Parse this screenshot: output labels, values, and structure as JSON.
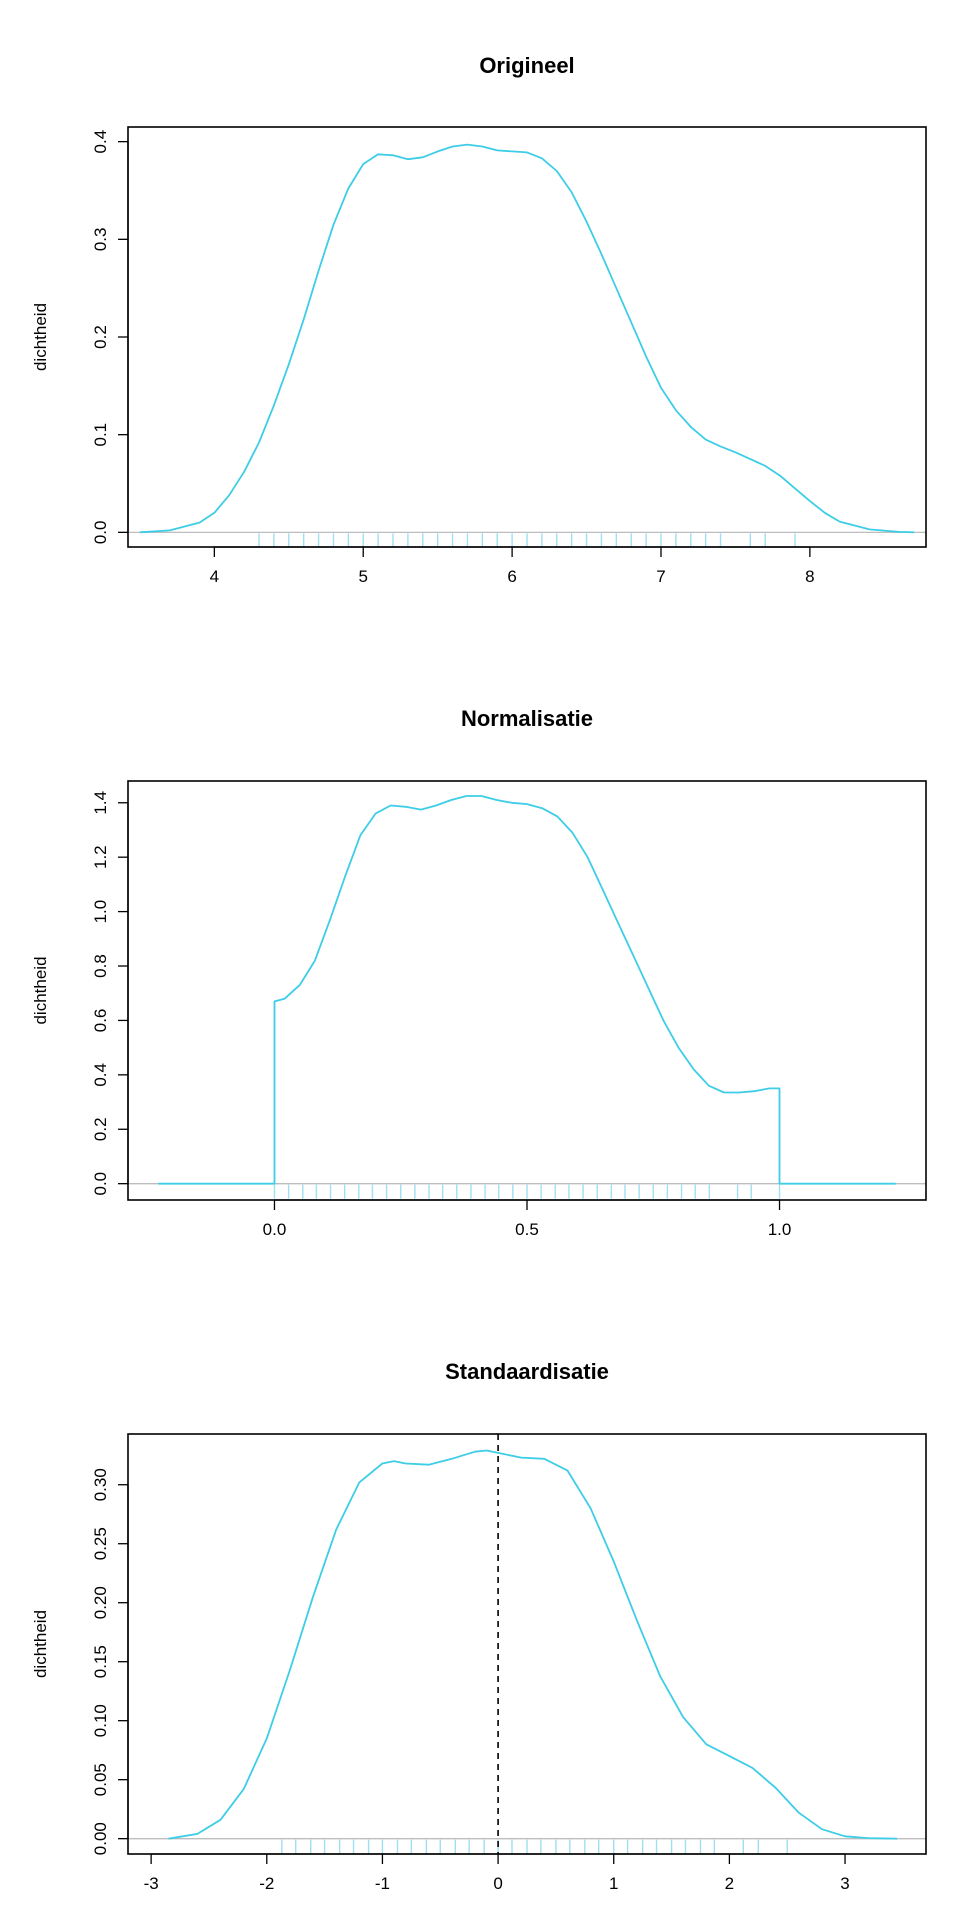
{
  "curve_color": "#3dcde6",
  "rug_color": "#9edff0",
  "chart_data": [
    {
      "type": "line",
      "title": "Origineel",
      "xlabel": "",
      "ylabel": "dichtheid",
      "xlim": [
        3.42,
        8.78
      ],
      "ylim": [
        -0.015,
        0.415
      ],
      "xticks": [
        4,
        5,
        6,
        7,
        8
      ],
      "xtick_labels": [
        "4",
        "5",
        "6",
        "7",
        "8"
      ],
      "yticks": [
        0.0,
        0.1,
        0.2,
        0.3,
        0.4
      ],
      "ytick_labels": [
        "0.0",
        "0.1",
        "0.2",
        "0.3",
        "0.4"
      ],
      "x": [
        3.5,
        3.7,
        3.9,
        4.0,
        4.1,
        4.2,
        4.3,
        4.4,
        4.5,
        4.6,
        4.7,
        4.8,
        4.9,
        5.0,
        5.1,
        5.2,
        5.3,
        5.4,
        5.5,
        5.6,
        5.7,
        5.8,
        5.9,
        6.0,
        6.1,
        6.2,
        6.3,
        6.4,
        6.5,
        6.6,
        6.7,
        6.8,
        6.9,
        7.0,
        7.1,
        7.2,
        7.3,
        7.4,
        7.5,
        7.6,
        7.7,
        7.8,
        7.9,
        8.0,
        8.1,
        8.2,
        8.4,
        8.6,
        8.7
      ],
      "y": [
        0.0,
        0.002,
        0.01,
        0.02,
        0.038,
        0.062,
        0.092,
        0.13,
        0.172,
        0.218,
        0.268,
        0.315,
        0.352,
        0.377,
        0.387,
        0.386,
        0.382,
        0.384,
        0.39,
        0.395,
        0.397,
        0.395,
        0.391,
        0.39,
        0.389,
        0.383,
        0.37,
        0.348,
        0.318,
        0.285,
        0.25,
        0.215,
        0.18,
        0.148,
        0.125,
        0.108,
        0.095,
        0.088,
        0.082,
        0.075,
        0.068,
        0.058,
        0.045,
        0.032,
        0.02,
        0.011,
        0.003,
        0.0005,
        0.0
      ],
      "rug": [
        4.3,
        4.4,
        4.5,
        4.6,
        4.7,
        4.8,
        4.9,
        5.0,
        5.1,
        5.2,
        5.3,
        5.4,
        5.5,
        5.6,
        5.7,
        5.8,
        5.9,
        6.0,
        6.1,
        6.2,
        6.3,
        6.4,
        6.5,
        6.6,
        6.7,
        6.8,
        6.9,
        7.0,
        7.1,
        7.2,
        7.3,
        7.4,
        7.6,
        7.7,
        7.9
      ]
    },
    {
      "type": "line",
      "title": "Normalisatie",
      "xlabel": "",
      "ylabel": "dichtheid",
      "xlim": [
        -0.29,
        1.29
      ],
      "ylim": [
        -0.06,
        1.48
      ],
      "xticks": [
        0.0,
        0.5,
        1.0
      ],
      "xtick_labels": [
        "0.0",
        "0.5",
        "1.0"
      ],
      "yticks": [
        0.0,
        0.2,
        0.4,
        0.6,
        0.8,
        1.0,
        1.2,
        1.4
      ],
      "ytick_labels": [
        "0.0",
        "0.2",
        "0.4",
        "0.6",
        "0.8",
        "1.0",
        "1.2",
        "1.4"
      ],
      "x": [
        -0.23,
        0.0,
        0.0,
        0.02,
        0.05,
        0.08,
        0.11,
        0.14,
        0.17,
        0.2,
        0.23,
        0.26,
        0.29,
        0.32,
        0.35,
        0.38,
        0.41,
        0.44,
        0.47,
        0.5,
        0.53,
        0.56,
        0.59,
        0.62,
        0.65,
        0.68,
        0.71,
        0.74,
        0.77,
        0.8,
        0.83,
        0.86,
        0.89,
        0.92,
        0.95,
        0.98,
        1.0,
        1.0,
        1.23
      ],
      "y": [
        0.0,
        0.0,
        0.67,
        0.68,
        0.73,
        0.82,
        0.97,
        1.13,
        1.28,
        1.36,
        1.39,
        1.385,
        1.375,
        1.39,
        1.41,
        1.425,
        1.425,
        1.41,
        1.4,
        1.395,
        1.38,
        1.35,
        1.29,
        1.2,
        1.08,
        0.96,
        0.84,
        0.72,
        0.6,
        0.5,
        0.42,
        0.36,
        0.335,
        0.335,
        0.34,
        0.35,
        0.35,
        0.0,
        0.0
      ],
      "rug": [
        0.0,
        0.028,
        0.056,
        0.083,
        0.111,
        0.139,
        0.167,
        0.194,
        0.222,
        0.25,
        0.278,
        0.306,
        0.333,
        0.361,
        0.389,
        0.417,
        0.444,
        0.472,
        0.5,
        0.528,
        0.556,
        0.583,
        0.611,
        0.639,
        0.667,
        0.694,
        0.722,
        0.75,
        0.778,
        0.806,
        0.833,
        0.861,
        0.917,
        0.944,
        1.0
      ]
    },
    {
      "type": "line",
      "title": "Standaardisatie",
      "xlabel": "",
      "ylabel": "dichtheid",
      "xlim": [
        -3.2,
        3.7
      ],
      "ylim": [
        -0.013,
        0.343
      ],
      "xticks": [
        -3,
        -2,
        -1,
        0,
        1,
        2,
        3
      ],
      "xtick_labels": [
        "-3",
        "-2",
        "-1",
        "0",
        "1",
        "2",
        "3"
      ],
      "yticks": [
        0.0,
        0.05,
        0.1,
        0.15,
        0.2,
        0.25,
        0.3
      ],
      "ytick_labels": [
        "0.00",
        "0.05",
        "0.10",
        "0.15",
        "0.20",
        "0.25",
        "0.30"
      ],
      "vline": 0,
      "x": [
        -2.85,
        -2.6,
        -2.4,
        -2.2,
        -2.0,
        -1.8,
        -1.6,
        -1.4,
        -1.2,
        -1.0,
        -0.9,
        -0.8,
        -0.6,
        -0.4,
        -0.2,
        -0.1,
        0.0,
        0.2,
        0.4,
        0.6,
        0.8,
        1.0,
        1.2,
        1.4,
        1.6,
        1.8,
        2.0,
        2.2,
        2.4,
        2.6,
        2.8,
        3.0,
        3.2,
        3.45
      ],
      "y": [
        0.0,
        0.004,
        0.016,
        0.042,
        0.085,
        0.143,
        0.205,
        0.262,
        0.302,
        0.318,
        0.32,
        0.318,
        0.317,
        0.322,
        0.328,
        0.329,
        0.327,
        0.323,
        0.322,
        0.312,
        0.28,
        0.235,
        0.185,
        0.138,
        0.103,
        0.08,
        0.07,
        0.06,
        0.043,
        0.022,
        0.008,
        0.002,
        0.0005,
        0.0
      ],
      "rug": [
        -1.87,
        -1.75,
        -1.62,
        -1.5,
        -1.37,
        -1.25,
        -1.12,
        -1.0,
        -0.87,
        -0.75,
        -0.62,
        -0.5,
        -0.37,
        -0.25,
        -0.12,
        0.0,
        0.12,
        0.25,
        0.37,
        0.5,
        0.62,
        0.75,
        0.87,
        1.0,
        1.12,
        1.25,
        1.37,
        1.5,
        1.62,
        1.75,
        1.87,
        2.12,
        2.25,
        2.5
      ]
    }
  ]
}
